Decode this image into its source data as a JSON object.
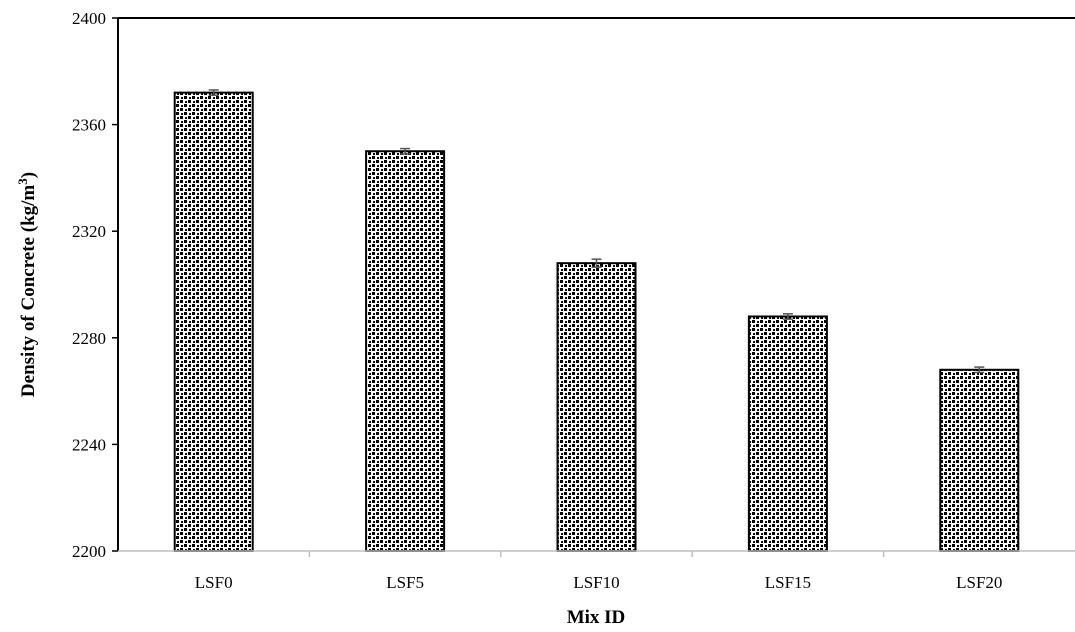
{
  "chart_data": {
    "type": "bar",
    "title": "",
    "categories": [
      "LSF0",
      "LSF5",
      "LSF10",
      "LSF15",
      "LSF20"
    ],
    "values": [
      2372,
      2350,
      2308,
      2288,
      2268
    ],
    "error": [
      1,
      1,
      1.5,
      1,
      1
    ],
    "xlabel": "Mix ID",
    "ylabel_main": "Density of Concrete (kg/m",
    "ylabel_sup": "3",
    "ylabel_close": ")",
    "ylim": [
      2200,
      2400
    ],
    "yticks": [
      "2200",
      "2240",
      "2280",
      "2320",
      "2360",
      "2400"
    ],
    "grid": false,
    "bar_pattern": "black-dotted-texture-on-white",
    "colors": {
      "bar_outline": "#000000",
      "pattern_dot": "#000000",
      "axis": "#000000",
      "xaxis": "#bfbfbf"
    }
  }
}
